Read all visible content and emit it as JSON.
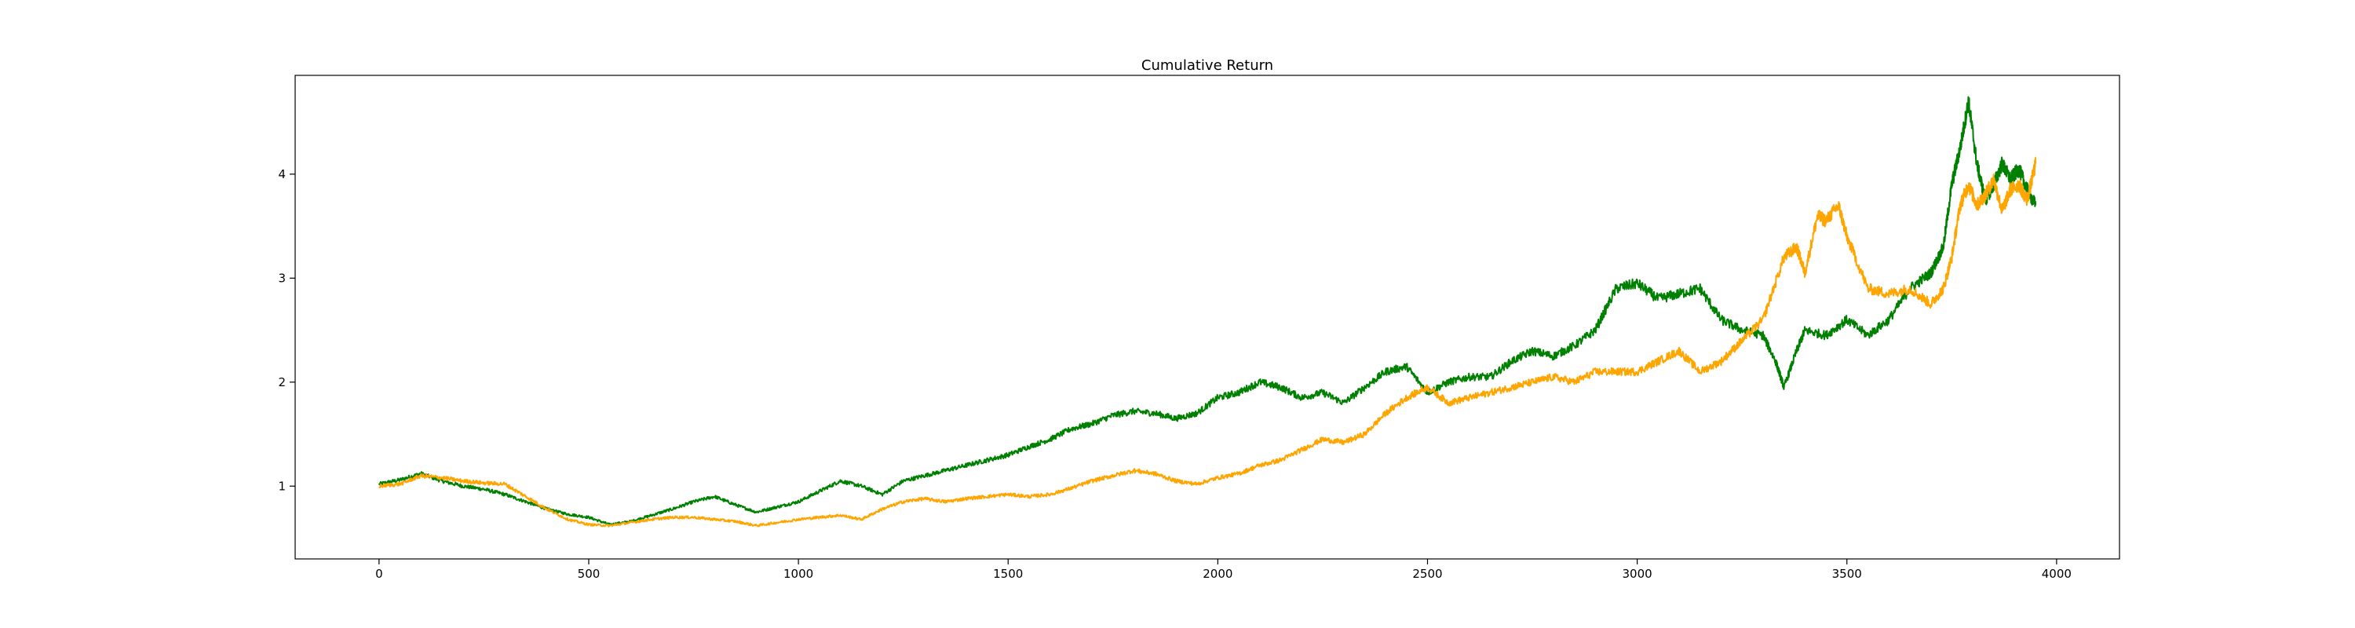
{
  "chart_data": {
    "type": "line",
    "title": "Cumulative Return",
    "xlabel": "",
    "ylabel": "",
    "xlim": [
      -200,
      4150
    ],
    "ylim": [
      0.3,
      4.95
    ],
    "x_ticks": [
      0,
      500,
      1000,
      1500,
      2000,
      2500,
      3000,
      3500,
      4000
    ],
    "y_ticks": [
      1,
      2,
      3,
      4
    ],
    "grid": false,
    "legend": "none",
    "series": [
      {
        "color": "#008000",
        "x": [
          0,
          50,
          100,
          150,
          200,
          250,
          300,
          350,
          400,
          450,
          500,
          550,
          600,
          650,
          700,
          750,
          800,
          850,
          900,
          950,
          1000,
          1050,
          1100,
          1150,
          1200,
          1250,
          1300,
          1350,
          1400,
          1450,
          1500,
          1550,
          1600,
          1650,
          1700,
          1750,
          1800,
          1850,
          1900,
          1950,
          2000,
          2050,
          2100,
          2150,
          2200,
          2250,
          2300,
          2350,
          2400,
          2450,
          2500,
          2550,
          2600,
          2650,
          2700,
          2750,
          2800,
          2850,
          2900,
          2950,
          3000,
          3050,
          3100,
          3150,
          3200,
          3250,
          3300,
          3330,
          3350,
          3380,
          3400,
          3450,
          3500,
          3550,
          3600,
          3650,
          3700,
          3730,
          3750,
          3770,
          3790,
          3810,
          3830,
          3850,
          3870,
          3890,
          3910,
          3930,
          3950
        ],
        "y": [
          1.02,
          1.06,
          1.12,
          1.05,
          1.0,
          0.97,
          0.92,
          0.85,
          0.78,
          0.73,
          0.7,
          0.63,
          0.66,
          0.72,
          0.78,
          0.85,
          0.9,
          0.82,
          0.75,
          0.8,
          0.85,
          0.95,
          1.05,
          1.0,
          0.92,
          1.05,
          1.1,
          1.15,
          1.2,
          1.25,
          1.3,
          1.38,
          1.45,
          1.55,
          1.6,
          1.68,
          1.72,
          1.7,
          1.65,
          1.7,
          1.85,
          1.9,
          2.0,
          1.95,
          1.85,
          1.9,
          1.8,
          1.95,
          2.1,
          2.15,
          1.9,
          2.0,
          2.05,
          2.05,
          2.2,
          2.3,
          2.25,
          2.35,
          2.5,
          2.9,
          2.95,
          2.8,
          2.85,
          2.9,
          2.6,
          2.5,
          2.45,
          2.2,
          1.95,
          2.3,
          2.5,
          2.45,
          2.6,
          2.45,
          2.6,
          2.9,
          3.05,
          3.3,
          3.9,
          4.25,
          4.7,
          4.1,
          3.75,
          3.9,
          4.1,
          3.95,
          4.05,
          3.85,
          3.7
        ]
      },
      {
        "color": "#FFA500",
        "x": [
          0,
          50,
          100,
          150,
          200,
          250,
          300,
          350,
          400,
          450,
          500,
          550,
          600,
          650,
          700,
          750,
          800,
          850,
          900,
          950,
          1000,
          1050,
          1100,
          1150,
          1200,
          1250,
          1300,
          1350,
          1400,
          1450,
          1500,
          1550,
          1600,
          1650,
          1700,
          1750,
          1800,
          1850,
          1900,
          1950,
          2000,
          2050,
          2100,
          2150,
          2200,
          2250,
          2300,
          2350,
          2400,
          2450,
          2500,
          2550,
          2600,
          2650,
          2700,
          2750,
          2800,
          2850,
          2900,
          2950,
          3000,
          3050,
          3100,
          3150,
          3200,
          3250,
          3300,
          3350,
          3380,
          3400,
          3430,
          3450,
          3480,
          3500,
          3550,
          3600,
          3650,
          3700,
          3730,
          3750,
          3770,
          3790,
          3810,
          3830,
          3850,
          3870,
          3890,
          3910,
          3930,
          3950
        ],
        "y": [
          1.0,
          1.02,
          1.1,
          1.08,
          1.05,
          1.03,
          1.02,
          0.9,
          0.78,
          0.68,
          0.63,
          0.62,
          0.65,
          0.68,
          0.7,
          0.7,
          0.68,
          0.66,
          0.62,
          0.65,
          0.68,
          0.7,
          0.72,
          0.68,
          0.78,
          0.85,
          0.88,
          0.85,
          0.88,
          0.9,
          0.92,
          0.9,
          0.92,
          0.98,
          1.05,
          1.1,
          1.15,
          1.12,
          1.05,
          1.02,
          1.08,
          1.12,
          1.2,
          1.25,
          1.35,
          1.45,
          1.42,
          1.5,
          1.7,
          1.85,
          1.95,
          1.8,
          1.85,
          1.9,
          1.95,
          2.0,
          2.05,
          2.0,
          2.1,
          2.1,
          2.1,
          2.2,
          2.3,
          2.1,
          2.2,
          2.4,
          2.6,
          3.2,
          3.3,
          3.05,
          3.6,
          3.55,
          3.7,
          3.4,
          2.9,
          2.85,
          2.9,
          2.75,
          2.9,
          3.2,
          3.7,
          3.9,
          3.7,
          3.8,
          3.95,
          3.65,
          3.85,
          3.9,
          3.75,
          4.1
        ]
      }
    ]
  }
}
